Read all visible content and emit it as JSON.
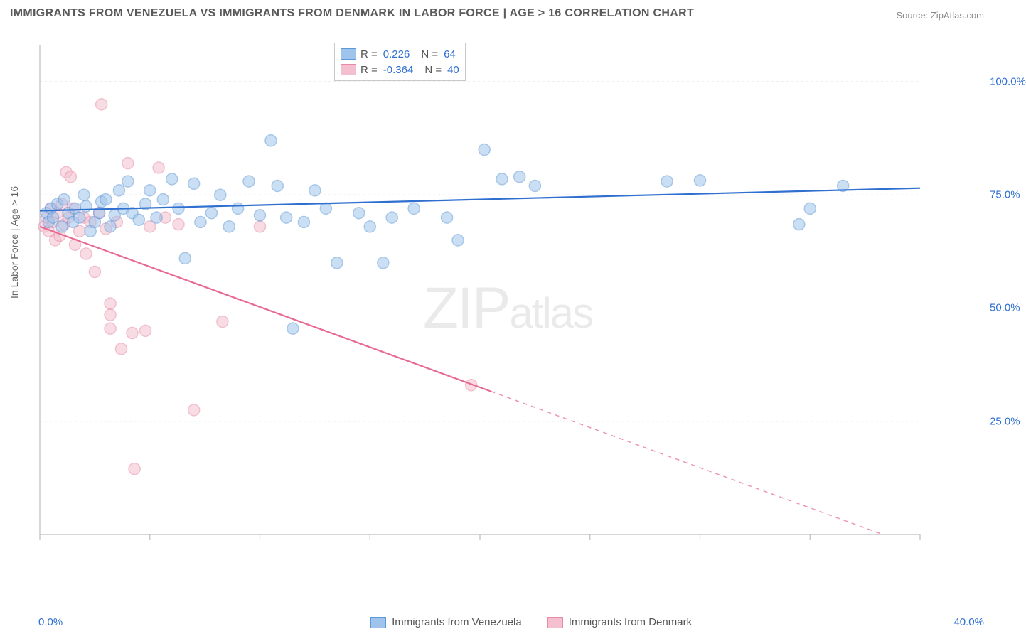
{
  "title": "IMMIGRANTS FROM VENEZUELA VS IMMIGRANTS FROM DENMARK IN LABOR FORCE | AGE > 16 CORRELATION CHART",
  "source": "Source: ZipAtlas.com",
  "watermark_main": "ZIP",
  "watermark_sub": "atlas",
  "ylabel": "In Labor Force | Age > 16",
  "chart": {
    "type": "scatter-with-regressions",
    "background_color": "#ffffff",
    "grid_color": "#dddddd",
    "axis_color": "#bdbdbd",
    "tick_color": "#bdbdbd",
    "text_color": "#666666",
    "value_color": "#2f6fd0",
    "xlim": [
      0,
      40
    ],
    "ylim": [
      0,
      108
    ],
    "x_ticks": [
      0,
      5,
      10,
      15,
      20,
      25,
      30,
      35,
      40
    ],
    "x_tick_labels": {
      "0": "0.0%",
      "40": "40.0%"
    },
    "y_gridlines": [
      25,
      50,
      75,
      100
    ],
    "y_tick_labels": {
      "25": "25.0%",
      "50": "50.0%",
      "75": "75.0%",
      "100": "100.0%"
    },
    "marker_radius": 8,
    "marker_opacity": 0.55,
    "line_width": 2.2,
    "series": [
      {
        "name": "Immigrants from Venezuela",
        "color_fill": "#9fc4ec",
        "color_stroke": "#5e98d6",
        "r_value": "0.226",
        "n_value": "64",
        "regression": {
          "x1": 0,
          "y1": 71.5,
          "x2": 40,
          "y2": 76.5,
          "color": "#2f6fd0",
          "solid_until_x": 40
        },
        "points": [
          [
            0.3,
            71
          ],
          [
            0.4,
            69
          ],
          [
            0.5,
            72
          ],
          [
            0.6,
            70
          ],
          [
            0.8,
            73
          ],
          [
            1.0,
            68
          ],
          [
            1.1,
            74
          ],
          [
            1.3,
            71
          ],
          [
            1.5,
            69
          ],
          [
            1.6,
            72
          ],
          [
            1.8,
            70
          ],
          [
            2.0,
            75
          ],
          [
            2.1,
            72.5
          ],
          [
            2.3,
            67
          ],
          [
            2.5,
            69
          ],
          [
            2.7,
            71
          ],
          [
            2.8,
            73.5
          ],
          [
            3.0,
            74
          ],
          [
            3.2,
            68
          ],
          [
            3.4,
            70.5
          ],
          [
            3.6,
            76
          ],
          [
            3.8,
            72
          ],
          [
            4.0,
            78
          ],
          [
            4.2,
            71
          ],
          [
            4.5,
            69.5
          ],
          [
            4.8,
            73
          ],
          [
            5.0,
            76
          ],
          [
            5.3,
            70
          ],
          [
            5.6,
            74
          ],
          [
            6.0,
            78.5
          ],
          [
            6.3,
            72
          ],
          [
            6.6,
            61
          ],
          [
            7.0,
            77.5
          ],
          [
            7.3,
            69
          ],
          [
            7.8,
            71
          ],
          [
            8.2,
            75
          ],
          [
            8.6,
            68
          ],
          [
            9.0,
            72
          ],
          [
            9.5,
            78
          ],
          [
            10.0,
            70.5
          ],
          [
            10.5,
            87
          ],
          [
            10.8,
            77
          ],
          [
            11.2,
            70
          ],
          [
            11.5,
            45.5
          ],
          [
            12.0,
            69
          ],
          [
            12.5,
            76
          ],
          [
            13.0,
            72
          ],
          [
            13.5,
            60
          ],
          [
            14.5,
            71
          ],
          [
            15.0,
            68
          ],
          [
            15.6,
            60
          ],
          [
            16.0,
            70
          ],
          [
            17.0,
            72
          ],
          [
            18.5,
            70
          ],
          [
            19.0,
            65
          ],
          [
            20.2,
            85
          ],
          [
            21.0,
            78.5
          ],
          [
            21.8,
            79
          ],
          [
            22.5,
            77
          ],
          [
            28.5,
            78
          ],
          [
            30.0,
            78.2
          ],
          [
            34.5,
            68.5
          ],
          [
            35.0,
            72
          ],
          [
            36.5,
            77
          ]
        ]
      },
      {
        "name": "Immigrants from Denmark",
        "color_fill": "#f4c0cf",
        "color_stroke": "#e88aa7",
        "r_value": "-0.364",
        "n_value": "40",
        "regression": {
          "x1": 0,
          "y1": 68,
          "x2": 40,
          "y2": -3,
          "color": "#e86a93",
          "solid_until_x": 20.5
        },
        "points": [
          [
            0.2,
            68
          ],
          [
            0.3,
            70
          ],
          [
            0.4,
            67
          ],
          [
            0.5,
            72
          ],
          [
            0.6,
            69
          ],
          [
            0.7,
            65
          ],
          [
            0.8,
            71
          ],
          [
            0.9,
            66
          ],
          [
            1.0,
            73
          ],
          [
            1.1,
            68.5
          ],
          [
            1.2,
            80
          ],
          [
            1.3,
            70
          ],
          [
            1.4,
            79
          ],
          [
            1.5,
            72
          ],
          [
            1.6,
            64
          ],
          [
            1.8,
            67
          ],
          [
            2.0,
            70
          ],
          [
            2.1,
            62
          ],
          [
            2.3,
            69
          ],
          [
            2.5,
            58
          ],
          [
            2.7,
            71
          ],
          [
            2.8,
            95
          ],
          [
            3.0,
            67.5
          ],
          [
            3.2,
            51
          ],
          [
            3.2,
            48.5
          ],
          [
            3.2,
            45.5
          ],
          [
            3.5,
            69
          ],
          [
            3.7,
            41
          ],
          [
            4.0,
            82
          ],
          [
            4.2,
            44.5
          ],
          [
            4.3,
            14.5
          ],
          [
            4.8,
            45
          ],
          [
            5.0,
            68
          ],
          [
            5.4,
            81
          ],
          [
            5.7,
            70
          ],
          [
            6.3,
            68.5
          ],
          [
            7.0,
            27.5
          ],
          [
            8.3,
            47
          ],
          [
            10.0,
            68
          ],
          [
            19.6,
            33
          ]
        ]
      }
    ]
  },
  "bottom_legend": {
    "series1": "Immigrants from Venezuela",
    "series2": "Immigrants from Denmark"
  }
}
